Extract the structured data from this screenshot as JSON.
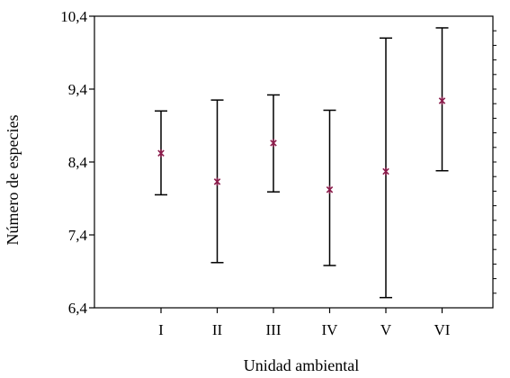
{
  "chart_data": {
    "type": "scatter",
    "title": "",
    "xlabel": "Unidad ambiental",
    "ylabel": "Número de especies",
    "categories": [
      "I",
      "II",
      "III",
      "IV",
      "V",
      "VI"
    ],
    "series": [
      {
        "mean": [
          8.52,
          8.13,
          8.66,
          8.02,
          8.27,
          9.24
        ],
        "lower": [
          7.95,
          7.02,
          7.99,
          6.98,
          6.54,
          8.28
        ],
        "upper": [
          9.1,
          9.25,
          9.32,
          9.11,
          10.1,
          10.24
        ],
        "marker": "asterisk",
        "color": "#8b1a4a"
      }
    ],
    "ylim": [
      6.4,
      10.4
    ],
    "yticks": [
      6.4,
      7.4,
      8.4,
      9.4,
      10.4
    ],
    "ytick_labels": [
      "6,4",
      "7,4",
      "8,4",
      "9,4",
      "10,4"
    ],
    "grid": false,
    "legend": "none"
  }
}
